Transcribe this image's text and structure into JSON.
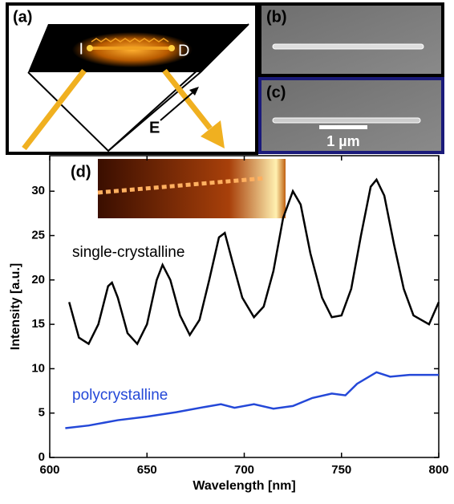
{
  "panels": {
    "a": "(a)",
    "b": "(b)",
    "c": "(c)",
    "d": "(d)",
    "source_label": "I",
    "drain_label": "D",
    "field_label": "E",
    "scale_bar": "1 µm"
  },
  "chart_data": {
    "type": "line",
    "xlabel": "Wavelength [nm]",
    "ylabel": "Intensity [a.u.]",
    "xlim": [
      600,
      800
    ],
    "ylim": [
      0,
      34
    ],
    "xticks": [
      600,
      650,
      700,
      750,
      800
    ],
    "yticks": [
      0,
      5,
      10,
      15,
      20,
      25,
      30
    ],
    "series": [
      {
        "name": "single-crystalline",
        "color": "#000000",
        "x": [
          610,
          615,
          620,
          625,
          630,
          632,
          635,
          640,
          645,
          650,
          655,
          658,
          662,
          667,
          672,
          677,
          682,
          687,
          690,
          694,
          699,
          705,
          710,
          715,
          720,
          725,
          729,
          734,
          740,
          745,
          750,
          755,
          760,
          765,
          768,
          772,
          777,
          782,
          787,
          795,
          800
        ],
        "values": [
          17.5,
          13.5,
          12.8,
          15,
          19.3,
          19.7,
          18,
          14,
          12.8,
          15,
          20,
          21.7,
          20,
          16,
          13.8,
          15.5,
          20,
          24.8,
          25.3,
          22,
          18,
          15.8,
          17,
          21,
          27,
          30,
          28.5,
          23,
          18,
          15.8,
          16,
          19,
          25,
          30.5,
          31.3,
          29.5,
          24,
          19,
          16,
          15,
          17.5
        ]
      },
      {
        "name": "polycrystalline",
        "color": "#2448d8",
        "x": [
          608,
          620,
          635,
          650,
          665,
          680,
          688,
          695,
          705,
          715,
          725,
          735,
          745,
          752,
          758,
          768,
          775,
          785,
          800
        ],
        "values": [
          3.3,
          3.6,
          4.2,
          4.6,
          5.1,
          5.7,
          6.0,
          5.6,
          6.0,
          5.5,
          5.8,
          6.7,
          7.2,
          7.0,
          8.3,
          9.6,
          9.1,
          9.3,
          9.3
        ]
      }
    ]
  }
}
